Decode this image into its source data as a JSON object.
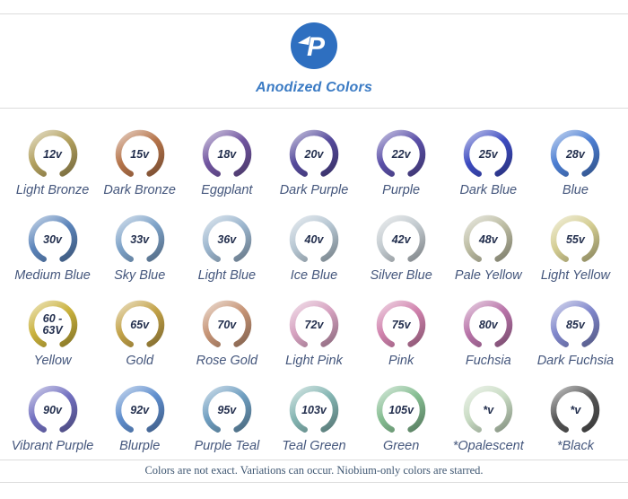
{
  "header": {
    "title": "Anodized Colors",
    "logo_letter": "P",
    "logo_color": "#2e6fc0"
  },
  "rings": [
    {
      "voltage": "12v",
      "name": "Light Bronze",
      "color": "#b2a05e"
    },
    {
      "voltage": "15v",
      "name": "Dark Bronze",
      "color": "#b5744a"
    },
    {
      "voltage": "18v",
      "name": "Eggplant",
      "color": "#7155a0"
    },
    {
      "voltage": "20v",
      "name": "Dark Purple",
      "color": "#554a9b"
    },
    {
      "voltage": "22v",
      "name": "Purple",
      "color": "#5b50a8"
    },
    {
      "voltage": "25v",
      "name": "Dark Blue",
      "color": "#3d4bc0"
    },
    {
      "voltage": "28v",
      "name": "Blue",
      "color": "#4c7ed2"
    },
    {
      "voltage": "30v",
      "name": "Medium Blue",
      "color": "#5b84ba"
    },
    {
      "voltage": "33v",
      "name": "Sky Blue",
      "color": "#7da2c8"
    },
    {
      "voltage": "36v",
      "name": "Light Blue",
      "color": "#9cb6ce"
    },
    {
      "voltage": "40v",
      "name": "Ice Blue",
      "color": "#b6c6d2"
    },
    {
      "voltage": "42v",
      "name": "Silver Blue",
      "color": "#c2cacf"
    },
    {
      "voltage": "48v",
      "name": "Pale Yellow",
      "color": "#bdbda3"
    },
    {
      "voltage": "55v",
      "name": "Light Yellow",
      "color": "#d4cd92"
    },
    {
      "voltage": "60 -\n63V",
      "name": "Yellow",
      "color": "#c9b13c"
    },
    {
      "voltage": "65v",
      "name": "Gold",
      "color": "#c2a248"
    },
    {
      "voltage": "70v",
      "name": "Rose Gold",
      "color": "#c69476"
    },
    {
      "voltage": "72v",
      "name": "Light Pink",
      "color": "#d6a2c0"
    },
    {
      "voltage": "75v",
      "name": "Pink",
      "color": "#d082ad"
    },
    {
      "voltage": "80v",
      "name": "Fuchsia",
      "color": "#b873a8"
    },
    {
      "voltage": "85v",
      "name": "Dark Fuchsia",
      "color": "#8087cb"
    },
    {
      "voltage": "90v",
      "name": "Vibrant Purple",
      "color": "#7270c0"
    },
    {
      "voltage": "92v",
      "name": "Blurple",
      "color": "#5f8ecd"
    },
    {
      "voltage": "95v",
      "name": "Purple Teal",
      "color": "#6f9ec0"
    },
    {
      "voltage": "103v",
      "name": "Teal Green",
      "color": "#84b5b2"
    },
    {
      "voltage": "105v",
      "name": "Green",
      "color": "#85bd91"
    },
    {
      "voltage": "*v",
      "name": "*Opalescent",
      "color": "#c9dcc4"
    },
    {
      "voltage": "*v",
      "name": "*Black",
      "color": "#565656"
    }
  ],
  "footer": {
    "note": "Colors are not exact. Variations can occur. Niobium-only colors are starred."
  }
}
